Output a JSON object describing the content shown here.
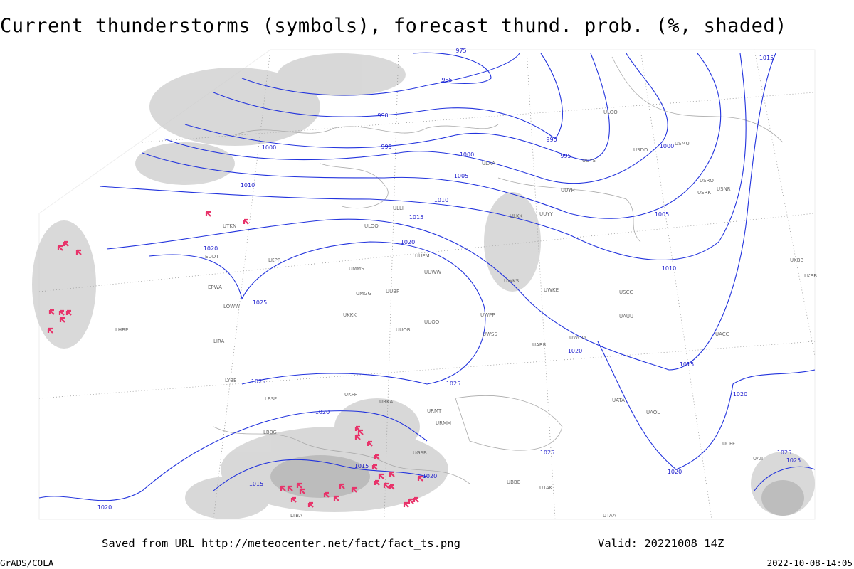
{
  "header": {
    "title": "Current thunderstorms (symbols), forecast thund. prob. (%, shaded)"
  },
  "map": {
    "isobar_labels": [
      975,
      985,
      990,
      995,
      1000,
      1000,
      990,
      995,
      1000,
      1005,
      1010,
      1010,
      1015,
      1005,
      1020,
      1020,
      1010,
      1025,
      1020,
      1015,
      1025,
      1025,
      1020,
      1015,
      1020,
      1015,
      1020,
      1015,
      1025,
      1020,
      1025,
      1025,
      1020
    ],
    "stations": [
      "ULOO",
      "UUYS",
      "USDD",
      "USMU",
      "UUYH",
      "USRO",
      "USRK",
      "USNR",
      "ULAA",
      "ULLI",
      "ULOO",
      "UUEM",
      "UMMS",
      "UUWW",
      "UMGG",
      "UUBP",
      "UKKK",
      "UUOO",
      "UUOB",
      "ULKK",
      "UUYY",
      "UWKS",
      "UWKE",
      "UWPP",
      "UWSS",
      "UARR",
      "UWOO",
      "USCC",
      "UAUU",
      "UACC",
      "UATA",
      "UAOL",
      "URMT",
      "URMM",
      "UKFF",
      "URKA",
      "UGSB",
      "UBBB",
      "UTAK",
      "UTAA",
      "UCFF",
      "UAII",
      "UTKN",
      "EDDT",
      "LKPR",
      "EPWA",
      "LOWW",
      "LHBP",
      "LIRA",
      "LYBE",
      "LBSF",
      "LBBG",
      "LTBA",
      "LKBB",
      "UKBB"
    ],
    "isobar_note": null
  },
  "footer": {
    "source": "Saved from URL http://meteocenter.net/fact/fact_ts.png",
    "valid": "Valid: 20221008 14Z",
    "credit": "GrADS/COLA",
    "timestamp": "2022-10-08-14:05"
  }
}
